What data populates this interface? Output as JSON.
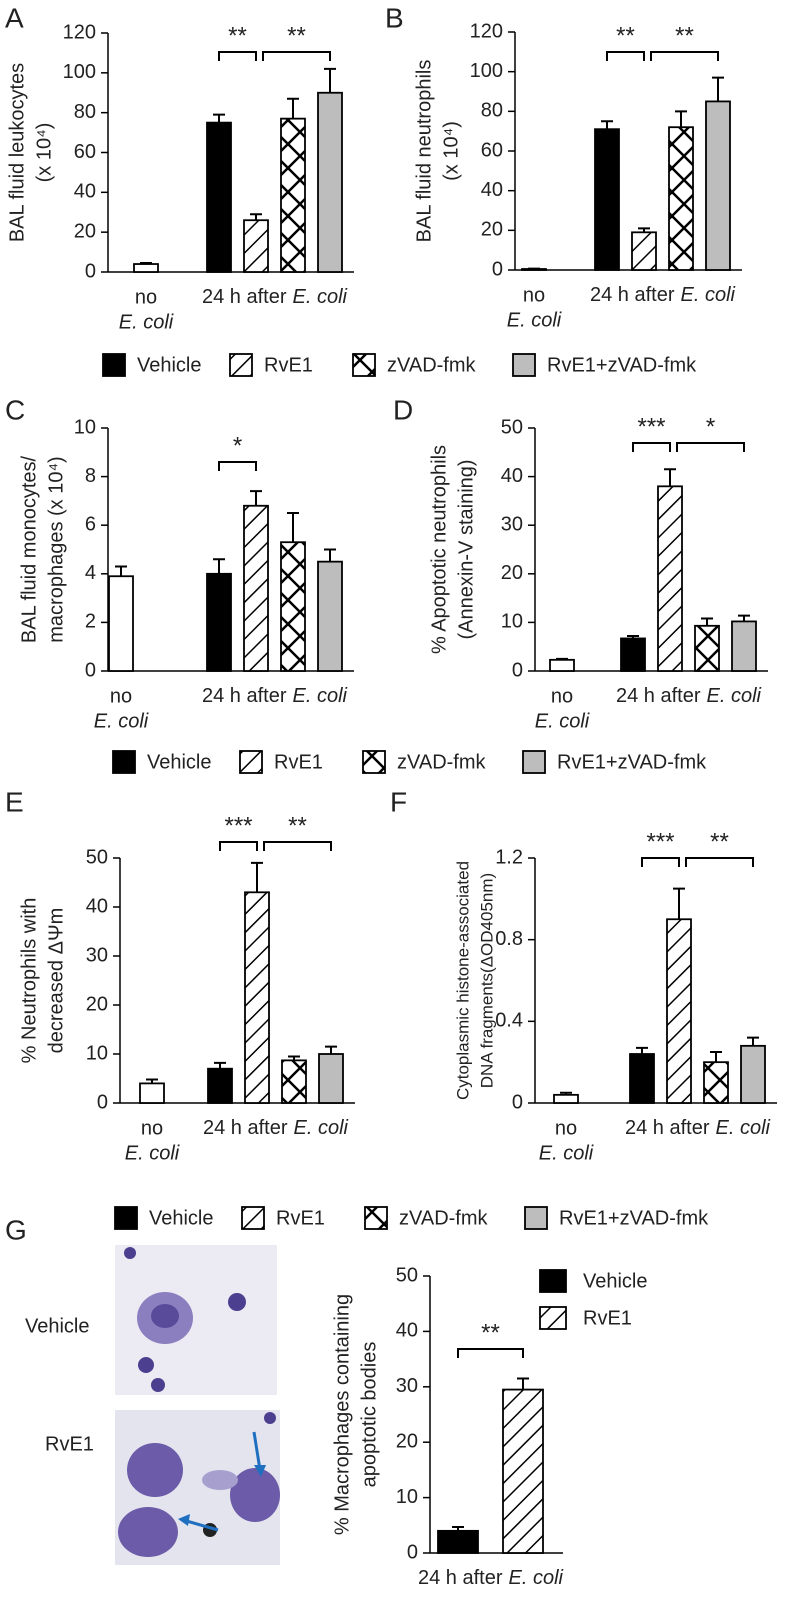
{
  "chart_data": [
    {
      "type": "bar",
      "panel": "A",
      "ylabel": [
        "BAL fluid leukocytes",
        "(x 10⁴)"
      ],
      "ylim": [
        0,
        120
      ],
      "yticks": [
        0,
        20,
        40,
        60,
        80,
        100,
        120
      ],
      "control": {
        "value": 4,
        "error": 0.5,
        "color": "#ffffff"
      },
      "x_groups": [
        {
          "text": "no",
          "italic": "E. coli"
        },
        {
          "text": "24 h after",
          "italic": "E. coli"
        }
      ],
      "series": [
        {
          "name": "Vehicle",
          "fill": "solid",
          "color": "#000000",
          "value": 75,
          "error": 4
        },
        {
          "name": "RvE1",
          "fill": "hatch",
          "color": "#ffffff",
          "value": 26,
          "error": 3
        },
        {
          "name": "zVAD-fmk",
          "fill": "crosshatch",
          "color": "#ffffff",
          "value": 77,
          "error": 10
        },
        {
          "name": "RvE1+zVAD-fmk",
          "fill": "solid",
          "color": "#bdbdbd",
          "value": 90,
          "error": 12
        }
      ],
      "annotations": [
        "**",
        "**"
      ],
      "legend": "below"
    },
    {
      "type": "bar",
      "panel": "B",
      "ylabel": [
        "BAL fluid neutrophils",
        "(x 10⁴)"
      ],
      "ylim": [
        0,
        120
      ],
      "yticks": [
        0,
        20,
        40,
        60,
        80,
        100,
        120
      ],
      "control": {
        "value": 0.5,
        "error": 0.2,
        "color": "#ffffff"
      },
      "x_groups": [
        {
          "text": "no",
          "italic": "E. coli"
        },
        {
          "text": "24 h after",
          "italic": "E. coli"
        }
      ],
      "series": [
        {
          "name": "Vehicle",
          "fill": "solid",
          "color": "#000000",
          "value": 71,
          "error": 4
        },
        {
          "name": "RvE1",
          "fill": "hatch",
          "color": "#ffffff",
          "value": 19,
          "error": 2
        },
        {
          "name": "zVAD-fmk",
          "fill": "crosshatch",
          "color": "#ffffff",
          "value": 72,
          "error": 8
        },
        {
          "name": "RvE1+zVAD-fmk",
          "fill": "solid",
          "color": "#bdbdbd",
          "value": 85,
          "error": 12
        }
      ],
      "annotations": [
        "**",
        "**"
      ]
    },
    {
      "type": "bar",
      "panel": "C",
      "ylabel": [
        "BAL fluid monocytes/",
        "macrophages (x 10⁴)"
      ],
      "ylim": [
        0,
        10
      ],
      "yticks": [
        0,
        2,
        4,
        6,
        8,
        10
      ],
      "control": {
        "value": 3.9,
        "error": 0.4,
        "color": "#ffffff"
      },
      "x_groups": [
        {
          "text": "no",
          "italic": "E. coli"
        },
        {
          "text": "24 h after",
          "italic": "E. coli"
        }
      ],
      "series": [
        {
          "name": "Vehicle",
          "fill": "solid",
          "color": "#000000",
          "value": 4.0,
          "error": 0.6
        },
        {
          "name": "RvE1",
          "fill": "hatch",
          "color": "#ffffff",
          "value": 6.8,
          "error": 0.6
        },
        {
          "name": "zVAD-fmk",
          "fill": "crosshatch",
          "color": "#ffffff",
          "value": 5.3,
          "error": 1.2
        },
        {
          "name": "RvE1+zVAD-fmk",
          "fill": "solid",
          "color": "#bdbdbd",
          "value": 4.5,
          "error": 0.5
        }
      ],
      "annotations": [
        "*"
      ],
      "legend": "below"
    },
    {
      "type": "bar",
      "panel": "D",
      "ylabel": [
        "% Apoptotic neutrophils",
        "(Annexin-V staining)"
      ],
      "ylim": [
        0,
        50
      ],
      "yticks": [
        0,
        10,
        20,
        30,
        40,
        50
      ],
      "control": {
        "value": 2.3,
        "error": 0.2,
        "color": "#ffffff"
      },
      "x_groups": [
        {
          "text": "no",
          "italic": "E. coli"
        },
        {
          "text": "24 h after",
          "italic": "E. coli"
        }
      ],
      "series": [
        {
          "name": "Vehicle",
          "fill": "solid",
          "color": "#000000",
          "value": 6.7,
          "error": 0.5
        },
        {
          "name": "RvE1",
          "fill": "hatch",
          "color": "#ffffff",
          "value": 38,
          "error": 3.5
        },
        {
          "name": "zVAD-fmk",
          "fill": "crosshatch",
          "color": "#ffffff",
          "value": 9.3,
          "error": 1.5
        },
        {
          "name": "RvE1+zVAD-fmk",
          "fill": "solid",
          "color": "#bdbdbd",
          "value": 10.2,
          "error": 1.2
        }
      ],
      "annotations": [
        "***",
        "*"
      ]
    },
    {
      "type": "bar",
      "panel": "E",
      "ylabel": [
        "% Neutrophils with",
        "decreased ΔΨm"
      ],
      "ylim": [
        0,
        50
      ],
      "yticks": [
        0,
        10,
        20,
        30,
        40,
        50
      ],
      "control": {
        "value": 4,
        "error": 0.8,
        "color": "#ffffff"
      },
      "x_groups": [
        {
          "text": "no",
          "italic": "E. coli"
        },
        {
          "text": "24 h after",
          "italic": "E. coli"
        }
      ],
      "series": [
        {
          "name": "Vehicle",
          "fill": "solid",
          "color": "#000000",
          "value": 7,
          "error": 1.2
        },
        {
          "name": "RvE1",
          "fill": "hatch",
          "color": "#ffffff",
          "value": 43,
          "error": 6
        },
        {
          "name": "zVAD-fmk",
          "fill": "crosshatch",
          "color": "#ffffff",
          "value": 8.7,
          "error": 0.8
        },
        {
          "name": "RvE1+zVAD-fmk",
          "fill": "solid",
          "color": "#bdbdbd",
          "value": 10,
          "error": 1.5
        }
      ],
      "annotations": [
        "***",
        "**"
      ],
      "legend": "below"
    },
    {
      "type": "bar",
      "panel": "F",
      "ylabel": [
        "Cytoplasmic histone-associated",
        "DNA fragments(ΔOD405nm)"
      ],
      "ylim": [
        0,
        1.2
      ],
      "yticks": [
        0,
        0.4,
        0.8,
        1.2
      ],
      "control": {
        "value": 0.04,
        "error": 0.01,
        "color": "#ffffff"
      },
      "x_groups": [
        {
          "text": "no",
          "italic": "E. coli"
        },
        {
          "text": "24 h after",
          "italic": "E. coli"
        }
      ],
      "series": [
        {
          "name": "Vehicle",
          "fill": "solid",
          "color": "#000000",
          "value": 0.24,
          "error": 0.03
        },
        {
          "name": "RvE1",
          "fill": "hatch",
          "color": "#ffffff",
          "value": 0.9,
          "error": 0.15
        },
        {
          "name": "zVAD-fmk",
          "fill": "crosshatch",
          "color": "#ffffff",
          "value": 0.2,
          "error": 0.05
        },
        {
          "name": "RvE1+zVAD-fmk",
          "fill": "solid",
          "color": "#bdbdbd",
          "value": 0.28,
          "error": 0.04
        }
      ],
      "annotations": [
        "***",
        "**"
      ]
    },
    {
      "type": "bar",
      "panel": "G",
      "ylabel": [
        "% Macrophages containing",
        "apoptotic bodies"
      ],
      "ylim": [
        0,
        50
      ],
      "yticks": [
        0,
        10,
        20,
        30,
        40,
        50
      ],
      "x_groups": [
        {
          "text": "24 h after",
          "italic": "E. coli"
        }
      ],
      "series": [
        {
          "name": "Vehicle",
          "fill": "solid",
          "color": "#000000",
          "value": 4,
          "error": 0.7
        },
        {
          "name": "RvE1",
          "fill": "hatch",
          "color": "#ffffff",
          "value": 29.5,
          "error": 2
        }
      ],
      "annotations": [
        "**"
      ],
      "legend": "upper right"
    }
  ],
  "micrographs": [
    "Vehicle",
    "RvE1"
  ]
}
